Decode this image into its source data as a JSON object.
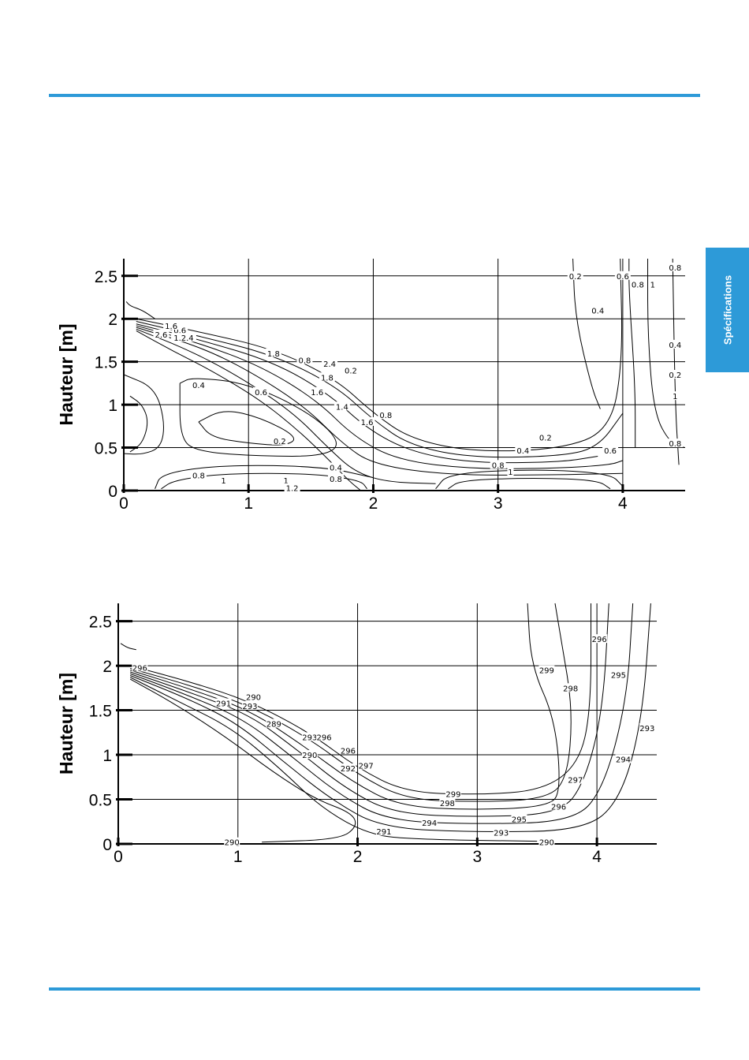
{
  "theme": {
    "accent": "#2d9ad8"
  },
  "side_tab": {
    "label": "Spécifications"
  },
  "chart_data": [
    {
      "type": "contour",
      "ylabel": "Hauteur [m]",
      "xlabel": "",
      "xlim": [
        0,
        4.5
      ],
      "ylim": [
        0,
        2.7
      ],
      "grid": true,
      "x_ticks": [
        "0",
        "1",
        "2",
        "3",
        "4"
      ],
      "y_ticks": [
        "0",
        "0.5",
        "1",
        "1.5",
        "2",
        "2.5"
      ],
      "contour_labels": [
        {
          "text": "0.2",
          "x": 3.62,
          "y": 2.5
        },
        {
          "text": "0.6",
          "x": 4.0,
          "y": 2.5
        },
        {
          "text": "0.8",
          "x": 4.12,
          "y": 2.4
        },
        {
          "text": "1",
          "x": 4.24,
          "y": 2.4
        },
        {
          "text": "0.8",
          "x": 4.42,
          "y": 2.6
        },
        {
          "text": "0.4",
          "x": 3.8,
          "y": 2.1
        },
        {
          "text": "0.4",
          "x": 4.42,
          "y": 1.7
        },
        {
          "text": "0.2",
          "x": 4.42,
          "y": 1.35
        },
        {
          "text": "1",
          "x": 4.42,
          "y": 1.1
        },
        {
          "text": "0.8",
          "x": 4.42,
          "y": 0.55
        },
        {
          "text": "0.2",
          "x": 3.38,
          "y": 0.62
        },
        {
          "text": "0.4",
          "x": 3.2,
          "y": 0.47
        },
        {
          "text": "0.6",
          "x": 3.9,
          "y": 0.47
        },
        {
          "text": "0.8",
          "x": 3.0,
          "y": 0.3
        },
        {
          "text": "1",
          "x": 3.1,
          "y": 0.22
        },
        {
          "text": "0.4",
          "x": 1.7,
          "y": 0.27
        },
        {
          "text": "0.8",
          "x": 1.7,
          "y": 0.14
        },
        {
          "text": "1",
          "x": 1.3,
          "y": 0.12
        },
        {
          "text": "1.2",
          "x": 1.35,
          "y": 0.03
        },
        {
          "text": "0.8",
          "x": 0.6,
          "y": 0.18
        },
        {
          "text": "1",
          "x": 0.8,
          "y": 0.12
        },
        {
          "text": "0.4",
          "x": 0.6,
          "y": 1.23
        },
        {
          "text": "0.2",
          "x": 1.25,
          "y": 0.58
        },
        {
          "text": "0.6",
          "x": 1.1,
          "y": 1.15
        },
        {
          "text": "1.6",
          "x": 1.55,
          "y": 1.15
        },
        {
          "text": "1.8",
          "x": 1.63,
          "y": 1.32
        },
        {
          "text": "1.4",
          "x": 1.75,
          "y": 0.98
        },
        {
          "text": "1.6",
          "x": 1.95,
          "y": 0.8
        },
        {
          "text": "0.8",
          "x": 2.1,
          "y": 0.88
        },
        {
          "text": "1.8",
          "x": 1.2,
          "y": 1.6
        },
        {
          "text": "0.8",
          "x": 1.45,
          "y": 1.52
        },
        {
          "text": "2.4",
          "x": 1.65,
          "y": 1.48
        },
        {
          "text": "0.2",
          "x": 1.82,
          "y": 1.4
        },
        {
          "text": "0.6",
          "x": 0.45,
          "y": 1.87
        },
        {
          "text": "1.2.4",
          "x": 0.48,
          "y": 1.78
        },
        {
          "text": "1.6",
          "x": 0.38,
          "y": 1.92
        },
        {
          "text": "2.6",
          "x": 0.3,
          "y": 1.82
        }
      ]
    },
    {
      "type": "contour",
      "ylabel": "Hauteur [m]",
      "xlabel": "",
      "xlim": [
        0,
        4.5
      ],
      "ylim": [
        0,
        2.7
      ],
      "grid": true,
      "x_ticks": [
        "0",
        "1",
        "2",
        "3",
        "4"
      ],
      "y_ticks": [
        "0",
        "0.5",
        "1",
        "1.5",
        "2",
        "2.5"
      ],
      "contour_labels": [
        {
          "text": "299",
          "x": 3.58,
          "y": 1.95
        },
        {
          "text": "298",
          "x": 3.78,
          "y": 1.75
        },
        {
          "text": "296",
          "x": 4.02,
          "y": 2.3
        },
        {
          "text": "295",
          "x": 4.18,
          "y": 1.9
        },
        {
          "text": "293",
          "x": 4.42,
          "y": 1.3
        },
        {
          "text": "294",
          "x": 4.22,
          "y": 0.95
        },
        {
          "text": "297",
          "x": 3.82,
          "y": 0.72
        },
        {
          "text": "296",
          "x": 3.68,
          "y": 0.42
        },
        {
          "text": "295",
          "x": 3.35,
          "y": 0.28
        },
        {
          "text": "293",
          "x": 3.2,
          "y": 0.13
        },
        {
          "text": "290",
          "x": 3.58,
          "y": 0.02
        },
        {
          "text": "299",
          "x": 2.8,
          "y": 0.56
        },
        {
          "text": "298",
          "x": 2.75,
          "y": 0.46
        },
        {
          "text": "294",
          "x": 2.6,
          "y": 0.24
        },
        {
          "text": "291",
          "x": 2.22,
          "y": 0.14
        },
        {
          "text": "290",
          "x": 0.95,
          "y": 0.02
        },
        {
          "text": "297",
          "x": 2.07,
          "y": 0.88
        },
        {
          "text": "292",
          "x": 1.92,
          "y": 0.85
        },
        {
          "text": "290",
          "x": 1.6,
          "y": 1.0
        },
        {
          "text": "293",
          "x": 1.6,
          "y": 1.2
        },
        {
          "text": "296",
          "x": 1.72,
          "y": 1.2
        },
        {
          "text": "296",
          "x": 1.92,
          "y": 1.05
        },
        {
          "text": "289",
          "x": 1.3,
          "y": 1.35
        },
        {
          "text": "290",
          "x": 1.13,
          "y": 1.65
        },
        {
          "text": "293",
          "x": 1.1,
          "y": 1.55
        },
        {
          "text": "291",
          "x": 0.88,
          "y": 1.58
        },
        {
          "text": "296",
          "x": 0.18,
          "y": 1.98
        }
      ]
    }
  ]
}
